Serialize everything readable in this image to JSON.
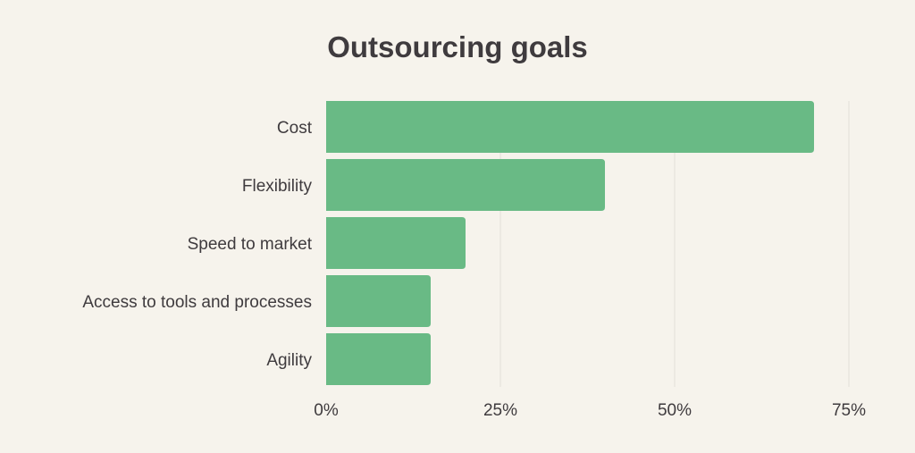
{
  "chart_data": {
    "type": "bar",
    "orientation": "horizontal",
    "title": "Outsourcing goals",
    "categories": [
      "Cost",
      "Flexibility",
      "Speed to market",
      "Access to tools and processes",
      "Agility"
    ],
    "values": [
      70,
      40,
      20,
      15,
      15
    ],
    "unit": "%",
    "xlabel": "",
    "ylabel": "",
    "xlim": [
      0,
      75
    ],
    "x_ticks": [
      "0%",
      "25%",
      "50%",
      "75%"
    ],
    "x_tick_values": [
      0,
      25,
      50,
      75
    ],
    "grid": "vertical",
    "legend": "none",
    "colors": {
      "bar": "#69ba85",
      "background": "#f6f3ec",
      "grid": "#e2dfd8",
      "text": "#3f3b3e"
    }
  }
}
